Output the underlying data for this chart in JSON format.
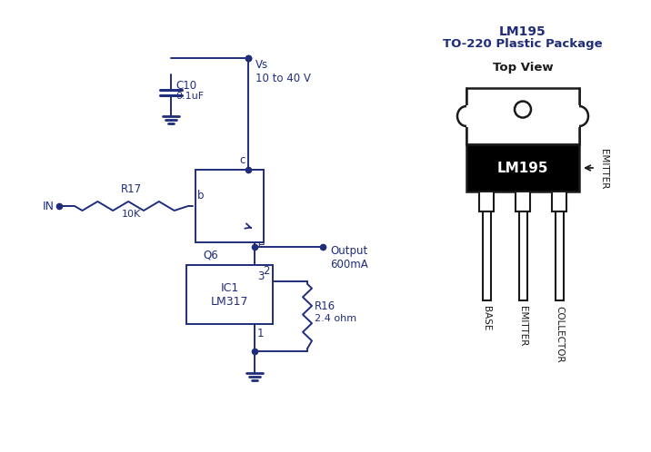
{
  "bg_color": "#ffffff",
  "cc": "#1f2d7b",
  "bk": "#1a1a1a",
  "white": "#ffffff",
  "title_text": "LM195",
  "subtitle_text": "TO-220 Plastic Package",
  "topview_text": "Top View",
  "label_emitter": "EMITTER",
  "label_base": "BASE",
  "label_collector": "COLLECTOR",
  "lm195_label": "LM195",
  "vs_label": "Vs\n10 to 40 V",
  "output_label": "Output\n600mA",
  "c10_label": "C10",
  "c10_val": "0.1uF",
  "r17_label": "R17",
  "r17_val": "10K",
  "q6_label": "Q6\nLM195",
  "ic1_label": "IC1\nLM317",
  "r16_label": "R16",
  "r16_val": "2.4 ohm",
  "in_label": "IN",
  "node_b": "b",
  "node_c": "c",
  "node_e": "e",
  "node_1": "1",
  "node_2": "2",
  "node_3": "3"
}
